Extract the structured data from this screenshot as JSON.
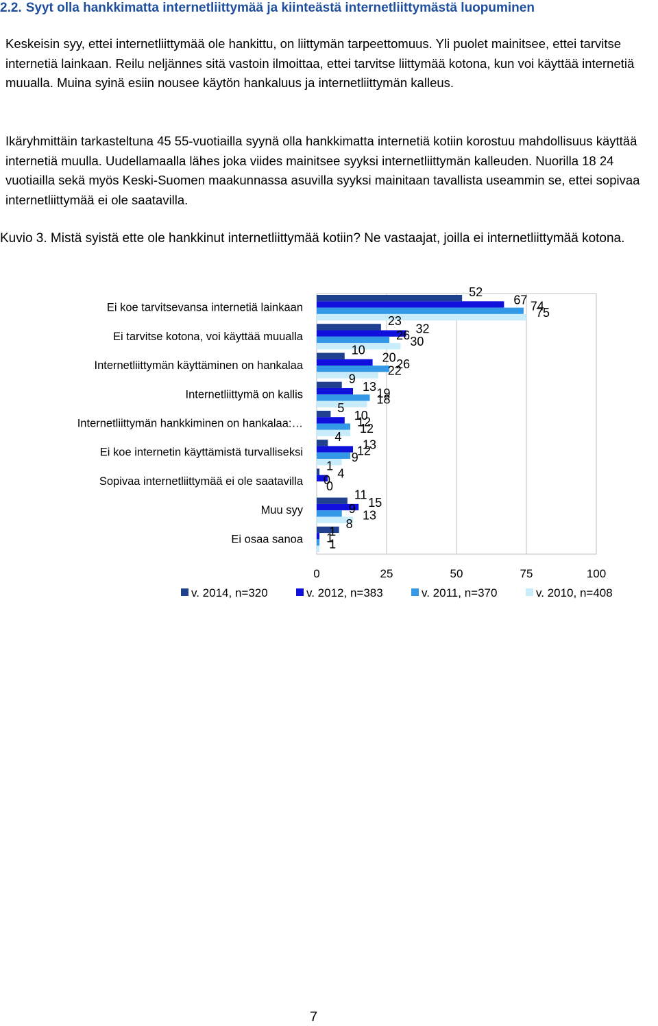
{
  "heading": {
    "number": "2.2.",
    "title": "Syyt olla hankkimatta internetliittymää ja kiinteästä internetliittymästä luopuminen"
  },
  "paragraphs": [
    "Keskeisin syy, ettei internetliittymää ole hankittu, on liittymän tarpeettomuus. Yli puolet mainitsee, ettei tarvitse internetiä lainkaan. Reilu neljännes sitä vastoin ilmoittaa, ettei tarvitse liittymää kotona, kun voi käyttää internetiä muualla. Muina syinä esiin nousee käytön hankaluus ja internetliittymän kalleus.",
    "Ikäryhmittäin tarkasteltuna 45 55-vuotiailla syynä olla hankkimatta internetiä kotiin korostuu mahdollisuus käyttää internetiä muulla. Uudellamaalla lähes joka viides mainitsee syyksi internetliittymän kalleuden. Nuorilla 18 24 vuotiailla sekä myös Keski-Suomen maakunnassa asuvilla syyksi mainitaan tavallista useammin se, ettei sopivaa internetliittymää ei ole saatavilla."
  ],
  "caption": "Kuvio 3. Mistä syistä ette ole hankkinut internetliittymää kotiin? Ne vastaajat, joilla ei internetliittymää kotona.",
  "chart_data": {
    "type": "bar",
    "orientation": "horizontal",
    "categories": [
      "Ei koe tarvitsevansa internetiä lainkaan",
      "Ei tarvitse kotona, voi käyttää muualla",
      "Internetliittymän käyttäminen on hankalaa",
      "Internetliittymä on kallis",
      "Internetliittymän hankkiminen on hankalaa:…",
      "Ei koe internetin käyttämistä turvalliseksi",
      "Sopivaa internetliittymää ei ole saatavilla",
      "Muu syy",
      "Ei osaa sanoa"
    ],
    "series": [
      {
        "name": "v. 2014, n=320",
        "color": "#1f3f8f",
        "values": [
          52,
          23,
          10,
          9,
          5,
          4,
          1,
          11,
          8
        ]
      },
      {
        "name": "v. 2012, n=383",
        "color": "#1010dd",
        "values": [
          67,
          32,
          20,
          13,
          10,
          13,
          4,
          15,
          1
        ]
      },
      {
        "name": "v. 2011, n=370",
        "color": "#3399e6",
        "values": [
          74,
          26,
          26,
          19,
          12,
          12,
          0,
          9,
          1
        ]
      },
      {
        "name": "v. 2010, n=408",
        "color": "#c8ecfa",
        "values": [
          75,
          30,
          22,
          18,
          12,
          9,
          0,
          13,
          1
        ]
      }
    ],
    "xticks": [
      "0",
      "25",
      "50",
      "75",
      "100"
    ],
    "xlim": [
      0,
      100
    ],
    "grid": true,
    "legend": "bottom"
  },
  "page_number": "7"
}
